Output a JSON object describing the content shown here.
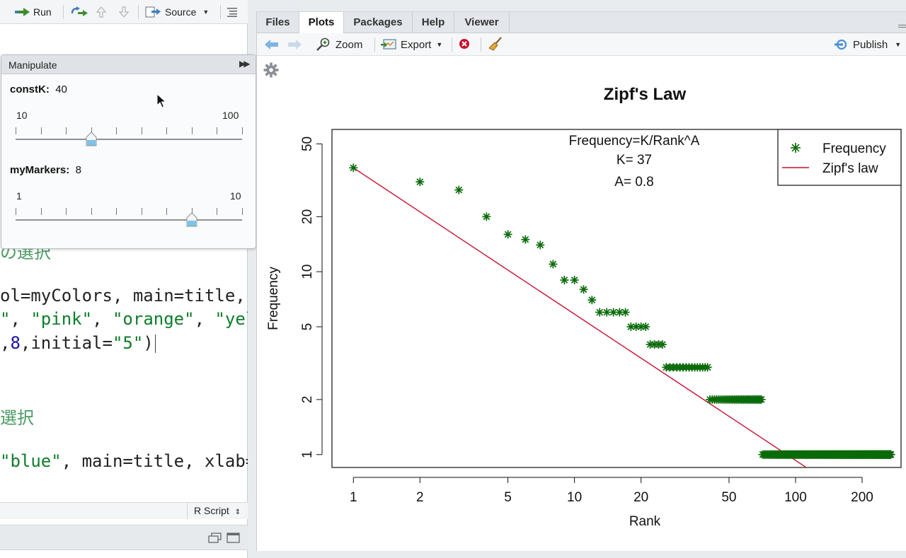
{
  "editor": {
    "toolbar": {
      "run_label": "Run",
      "source_label": "Source"
    },
    "code_lines": {
      "l1": "の選択",
      "l2a": "ol=myColors, main=title, x",
      "l3_open": "\"",
      "l3_mid": ", ",
      "l3_pink": "\"pink\"",
      "l3_orange": "\"orange\"",
      "l3_yel": "\"yel",
      "l4_comma": ",",
      "l4_num": "8",
      "l4_mid": ",initial=",
      "l4_str": "\"5\"",
      "l4_close": ")",
      "l5": "選択",
      "l6_str": "\"blue\"",
      "l6_rest": ", main=title, xlab=x"
    },
    "status": {
      "file_type": "R Script"
    }
  },
  "manipulate": {
    "title": "Manipulate",
    "controls": [
      {
        "name": "constK",
        "value": "40",
        "min": "10",
        "max": "100",
        "fraction": 0.333
      },
      {
        "name": "myMarkers",
        "value": "8",
        "min": "1",
        "max": "10",
        "fraction": 0.778
      }
    ]
  },
  "plots_pane": {
    "tabs": [
      {
        "label": "Files",
        "active": false
      },
      {
        "label": "Plots",
        "active": true
      },
      {
        "label": "Packages",
        "active": false
      },
      {
        "label": "Help",
        "active": false
      },
      {
        "label": "Viewer",
        "active": false
      }
    ],
    "toolbar": {
      "zoom_label": "Zoom",
      "export_label": "Export",
      "publish_label": "Publish"
    }
  },
  "chart_data": {
    "type": "scatter",
    "title": "Zipf's Law",
    "xlabel": "Rank",
    "ylabel": "Frequency",
    "x_scale": "log",
    "y_scale": "log",
    "x_ticks": [
      1,
      2,
      5,
      10,
      20,
      50,
      100,
      200
    ],
    "y_ticks": [
      1,
      2,
      5,
      10,
      20,
      50
    ],
    "xlim": [
      0.8,
      300
    ],
    "ylim": [
      0.85,
      60
    ],
    "annotations": [
      "Frequency=K/Rank^A",
      "K= 37",
      "A= 0.8"
    ],
    "legend": {
      "position": "top-right",
      "entries": [
        "Frequency",
        "Zipf's law"
      ]
    },
    "colors": {
      "points": "#0b6b0b",
      "line": "#c8102e"
    },
    "series": [
      {
        "name": "Frequency",
        "type": "scatter",
        "groups": [
          {
            "from": 1,
            "to": 1,
            "y": 37
          },
          {
            "from": 2,
            "to": 2,
            "y": 31
          },
          {
            "from": 3,
            "to": 3,
            "y": 28
          },
          {
            "from": 4,
            "to": 4,
            "y": 20
          },
          {
            "from": 5,
            "to": 5,
            "y": 16
          },
          {
            "from": 6,
            "to": 6,
            "y": 15
          },
          {
            "from": 7,
            "to": 7,
            "y": 14
          },
          {
            "from": 8,
            "to": 8,
            "y": 11
          },
          {
            "from": 9,
            "to": 10,
            "y": 9
          },
          {
            "from": 11,
            "to": 11,
            "y": 8
          },
          {
            "from": 12,
            "to": 12,
            "y": 7
          },
          {
            "from": 13,
            "to": 17,
            "y": 6
          },
          {
            "from": 18,
            "to": 21,
            "y": 5
          },
          {
            "from": 22,
            "to": 25,
            "y": 4
          },
          {
            "from": 26,
            "to": 40,
            "y": 3
          },
          {
            "from": 41,
            "to": 70,
            "y": 2
          },
          {
            "from": 71,
            "to": 270,
            "y": 1
          }
        ]
      },
      {
        "name": "Zipf's law",
        "type": "line",
        "K": 37,
        "A": 0.8,
        "x_range": [
          1,
          115
        ]
      }
    ]
  }
}
